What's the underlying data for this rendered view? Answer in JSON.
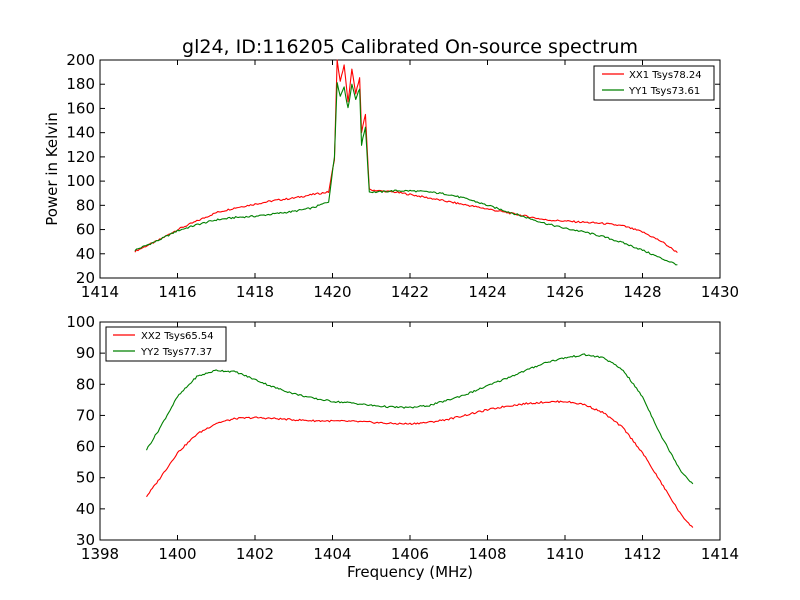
{
  "figure_title": "gl24, ID:116205 Calibrated On-source spectrum",
  "shared_xlabel": "Frequency (MHz)",
  "colors": {
    "xx": "#ff0000",
    "yy": "#008000"
  },
  "chart_data": [
    {
      "type": "line",
      "title": "gl24, ID:116205 Calibrated On-source spectrum",
      "xlabel": "",
      "ylabel": "Power in Kelvin",
      "xlim": [
        1414,
        1430
      ],
      "ylim": [
        20,
        200
      ],
      "xticks": [
        1414,
        1416,
        1418,
        1420,
        1422,
        1424,
        1426,
        1428,
        1430
      ],
      "yticks": [
        20,
        40,
        60,
        80,
        100,
        120,
        140,
        160,
        180,
        200
      ],
      "legend_position": "top-right",
      "grid": false,
      "series": [
        {
          "name": "XX1 Tsys78.24",
          "color": "#ff0000",
          "points": [
            [
              1414.9,
              42
            ],
            [
              1415.5,
              51
            ],
            [
              1416,
              60
            ],
            [
              1416.5,
              67
            ],
            [
              1417,
              74
            ],
            [
              1417.5,
              78
            ],
            [
              1418,
              81
            ],
            [
              1418.5,
              84
            ],
            [
              1419,
              86
            ],
            [
              1419.5,
              89
            ],
            [
              1419.9,
              91
            ],
            [
              1420.05,
              118
            ],
            [
              1420.12,
              200
            ],
            [
              1420.2,
              182
            ],
            [
              1420.3,
              196
            ],
            [
              1420.4,
              165
            ],
            [
              1420.5,
              192
            ],
            [
              1420.6,
              172
            ],
            [
              1420.7,
              186
            ],
            [
              1420.75,
              140
            ],
            [
              1420.85,
              155
            ],
            [
              1420.95,
              93
            ],
            [
              1421.2,
              92
            ],
            [
              1421.6,
              91
            ],
            [
              1422,
              89
            ],
            [
              1422.5,
              86
            ],
            [
              1423,
              83
            ],
            [
              1423.5,
              80
            ],
            [
              1424,
              77
            ],
            [
              1424.5,
              74
            ],
            [
              1425,
              71
            ],
            [
              1425.5,
              68
            ],
            [
              1426,
              67
            ],
            [
              1426.5,
              66
            ],
            [
              1427,
              65
            ],
            [
              1427.5,
              63
            ],
            [
              1428,
              58
            ],
            [
              1428.5,
              50
            ],
            [
              1428.9,
              41
            ]
          ]
        },
        {
          "name": "YY1 Tsys73.61",
          "color": "#008000",
          "points": [
            [
              1414.9,
              43
            ],
            [
              1415.5,
              51
            ],
            [
              1416,
              59
            ],
            [
              1416.5,
              64
            ],
            [
              1417,
              68
            ],
            [
              1417.5,
              70
            ],
            [
              1418,
              71
            ],
            [
              1418.5,
              73
            ],
            [
              1419,
              75
            ],
            [
              1419.5,
              78
            ],
            [
              1419.9,
              83
            ],
            [
              1420.05,
              120
            ],
            [
              1420.12,
              182
            ],
            [
              1420.2,
              170
            ],
            [
              1420.3,
              178
            ],
            [
              1420.4,
              160
            ],
            [
              1420.5,
              180
            ],
            [
              1420.6,
              168
            ],
            [
              1420.7,
              176
            ],
            [
              1420.75,
              130
            ],
            [
              1420.85,
              145
            ],
            [
              1420.95,
              91
            ],
            [
              1421.2,
              91
            ],
            [
              1421.6,
              92
            ],
            [
              1422,
              92
            ],
            [
              1422.5,
              91
            ],
            [
              1423,
              89
            ],
            [
              1423.5,
              85
            ],
            [
              1424,
              80
            ],
            [
              1424.5,
              75
            ],
            [
              1425,
              70
            ],
            [
              1425.5,
              65
            ],
            [
              1426,
              61
            ],
            [
              1426.5,
              58
            ],
            [
              1427,
              54
            ],
            [
              1427.5,
              49
            ],
            [
              1428,
              43
            ],
            [
              1428.5,
              36
            ],
            [
              1428.9,
              31
            ]
          ]
        }
      ]
    },
    {
      "type": "line",
      "title": "",
      "xlabel": "Frequency (MHz)",
      "ylabel": "",
      "xlim": [
        1398,
        1414
      ],
      "ylim": [
        30,
        100
      ],
      "xticks": [
        1398,
        1400,
        1402,
        1404,
        1406,
        1408,
        1410,
        1412,
        1414
      ],
      "yticks": [
        30,
        40,
        50,
        60,
        70,
        80,
        90,
        100
      ],
      "legend_position": "top-left",
      "grid": false,
      "series": [
        {
          "name": "XX2 Tsys65.54",
          "color": "#ff0000",
          "points": [
            [
              1399.2,
              44
            ],
            [
              1399.5,
              49
            ],
            [
              1400,
              58
            ],
            [
              1400.5,
              64
            ],
            [
              1401,
              67.5
            ],
            [
              1401.5,
              69
            ],
            [
              1402,
              69.3
            ],
            [
              1402.5,
              69
            ],
            [
              1403,
              68.6
            ],
            [
              1403.5,
              68.3
            ],
            [
              1404,
              68.2
            ],
            [
              1404.5,
              68.1
            ],
            [
              1405,
              67.8
            ],
            [
              1405.5,
              67.4
            ],
            [
              1406,
              67.3
            ],
            [
              1406.5,
              67.8
            ],
            [
              1407,
              68.8
            ],
            [
              1407.5,
              70.3
            ],
            [
              1408,
              71.8
            ],
            [
              1408.5,
              73
            ],
            [
              1409,
              73.8
            ],
            [
              1409.5,
              74.3
            ],
            [
              1410,
              74.5
            ],
            [
              1410.5,
              73.5
            ],
            [
              1411,
              70.8
            ],
            [
              1411.5,
              66
            ],
            [
              1412,
              58
            ],
            [
              1412.5,
              48
            ],
            [
              1413,
              38
            ],
            [
              1413.3,
              34
            ]
          ]
        },
        {
          "name": "YY2 Tsys77.37",
          "color": "#008000",
          "points": [
            [
              1399.2,
              59
            ],
            [
              1399.5,
              65
            ],
            [
              1400,
              76
            ],
            [
              1400.5,
              82.5
            ],
            [
              1401,
              84.5
            ],
            [
              1401.5,
              84
            ],
            [
              1402,
              81.5
            ],
            [
              1402.5,
              79
            ],
            [
              1403,
              77
            ],
            [
              1403.5,
              75.5
            ],
            [
              1404,
              74.5
            ],
            [
              1404.5,
              74
            ],
            [
              1405,
              73.2
            ],
            [
              1405.5,
              72.7
            ],
            [
              1406,
              72.5
            ],
            [
              1406.5,
              73.2
            ],
            [
              1407,
              75
            ],
            [
              1407.5,
              77
            ],
            [
              1408,
              79.5
            ],
            [
              1408.5,
              82
            ],
            [
              1409,
              84.5
            ],
            [
              1409.5,
              87
            ],
            [
              1410,
              88.5
            ],
            [
              1410.5,
              89.5
            ],
            [
              1411,
              88.5
            ],
            [
              1411.5,
              84.5
            ],
            [
              1412,
              76
            ],
            [
              1412.5,
              63
            ],
            [
              1413,
              52
            ],
            [
              1413.3,
              48
            ]
          ]
        }
      ]
    }
  ]
}
